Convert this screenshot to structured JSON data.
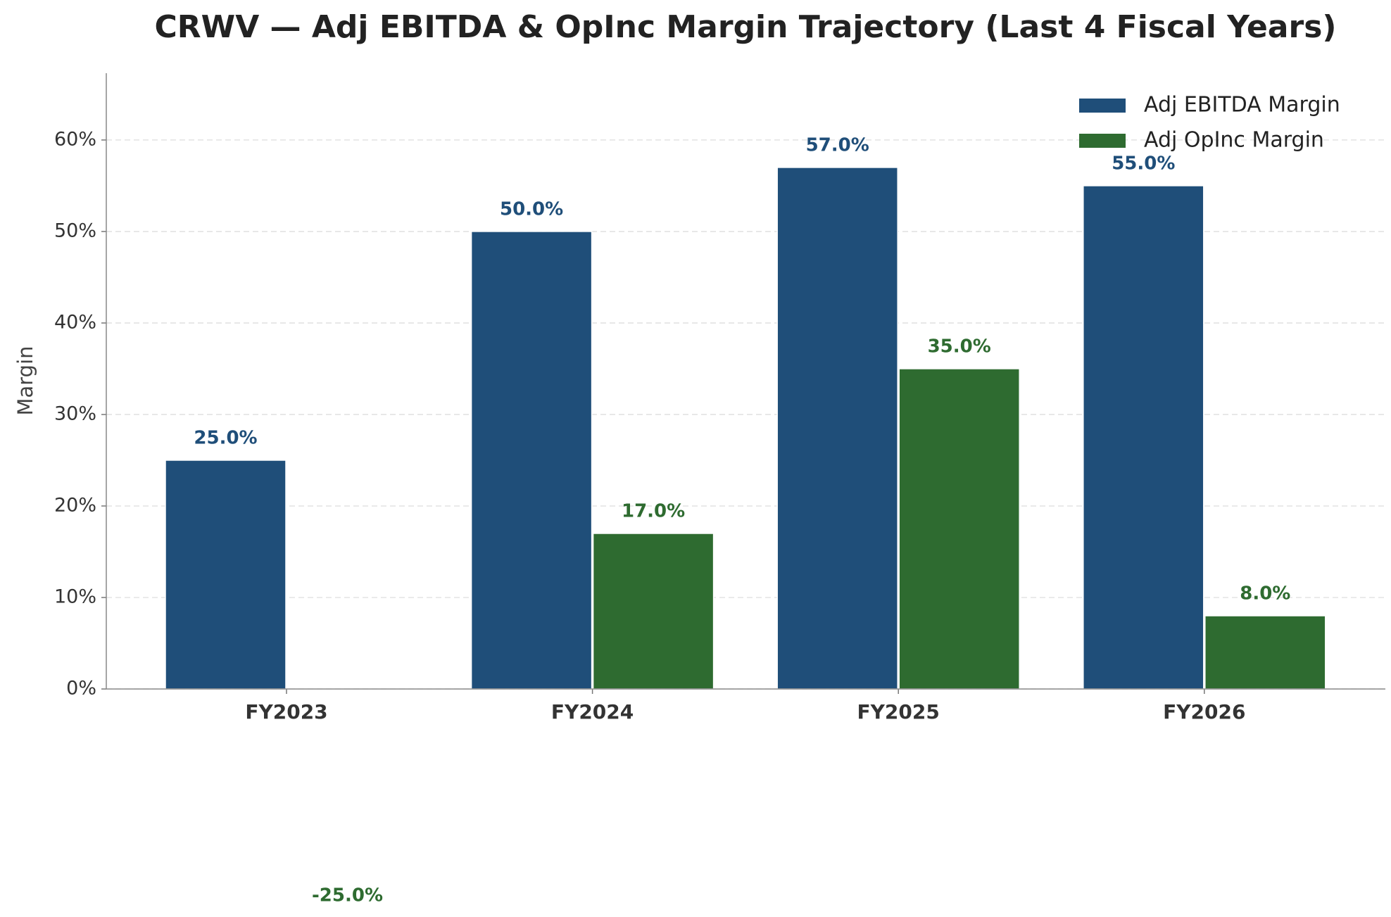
{
  "chart_data": {
    "type": "bar",
    "title": "CRWV — Adj EBITDA & OpInc Margin Trajectory (Last 4 Fiscal Years)",
    "ylabel": "Margin",
    "categories": [
      "FY2023",
      "FY2024",
      "FY2025",
      "FY2026"
    ],
    "series": [
      {
        "name": "Adj EBITDA Margin",
        "color": "#1f4e79",
        "values": [
          25,
          50,
          57,
          55
        ],
        "value_labels": [
          "25.0%",
          "50.0%",
          "57.0%",
          "55.0%"
        ]
      },
      {
        "name": "Adj OpInc Margin",
        "color": "#2e6b30",
        "values": [
          -25,
          17,
          35,
          8
        ],
        "value_labels": [
          "-25.0%",
          "17.0%",
          "35.0%",
          "8.0%"
        ]
      }
    ],
    "ylim": [
      0,
      67.3
    ],
    "yticks": [
      {
        "value": 0,
        "label": "0%"
      },
      {
        "value": 10,
        "label": "10%"
      },
      {
        "value": 20,
        "label": "20%"
      },
      {
        "value": 30,
        "label": "30%"
      },
      {
        "value": 40,
        "label": "40%"
      },
      {
        "value": 50,
        "label": "50%"
      },
      {
        "value": 60,
        "label": "60%"
      }
    ],
    "grid": true,
    "legend": "upper right"
  }
}
